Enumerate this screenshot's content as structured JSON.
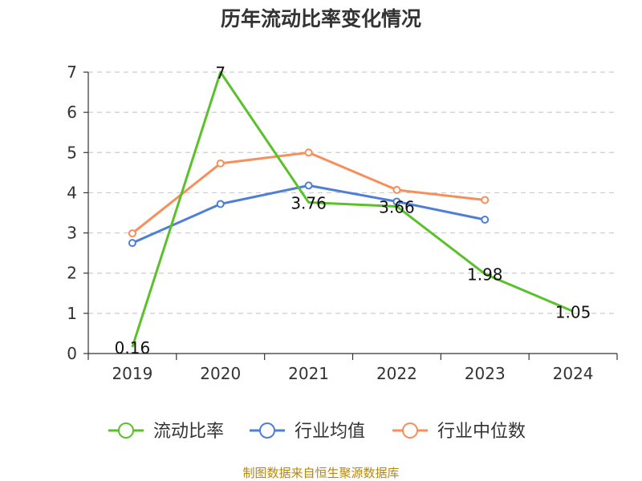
{
  "title": "历年流动比率变化情况",
  "source_note": "制图数据来自恒生聚源数据库",
  "chart_data": {
    "type": "line",
    "title": "历年流动比率变化情况",
    "categories": [
      "2019",
      "2020",
      "2021",
      "2022",
      "2023",
      "2024"
    ],
    "ylim": [
      0,
      7
    ],
    "yticks": [
      0,
      1,
      2,
      3,
      4,
      5,
      6,
      7
    ],
    "grid": true,
    "legend_position": "bottom",
    "series": [
      {
        "name": "流动比率",
        "color": "#5ac12a",
        "values": [
          0.16,
          7,
          3.76,
          3.66,
          1.98,
          1.05
        ],
        "labels": [
          "0.16",
          "7",
          "3.76",
          "3.66",
          "1.98",
          "1.05"
        ]
      },
      {
        "name": "行业均值",
        "color": "#4e7fd6",
        "values": [
          2.75,
          3.72,
          4.18,
          3.78,
          3.33,
          null
        ]
      },
      {
        "name": "行业中位数",
        "color": "#f78f5c",
        "values": [
          2.99,
          4.73,
          5.0,
          4.07,
          3.82,
          null
        ]
      }
    ]
  }
}
